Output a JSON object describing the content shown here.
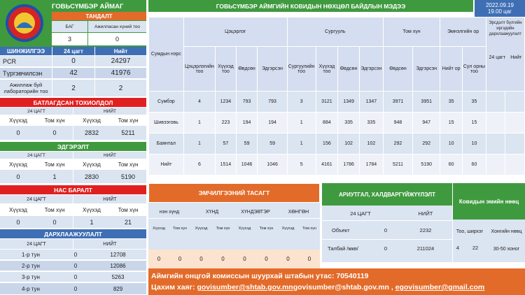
{
  "region": {
    "title": "ГОВЬСҮМБЭР АЙМАГ"
  },
  "tandalt": {
    "title": "ТАНДАЛТ",
    "col1": "БАГ",
    "col2": "Ажилласан хүний тоо",
    "val1": "3",
    "val2": "0"
  },
  "tests": {
    "title": "ШИНЖИЛГЭЭ",
    "col24": "24 цагт",
    "colTotal": "Нийт",
    "rows": [
      {
        "label": "PCR",
        "d24": "0",
        "total": "24297"
      },
      {
        "label": "Түргэвчилсэн",
        "d24": "42",
        "total": "41976"
      },
      {
        "label": "Ажиллаж буй лабораторийн тоо",
        "d24": "2",
        "total": "2"
      }
    ]
  },
  "confirmed": {
    "title": "БАТЛАГДСАН ТОХИОЛДОЛ",
    "h24": "24 ЦАГТ",
    "hTotal": "НИЙТ",
    "c1": "Хүүхэд",
    "c2": "Том хүн",
    "c3": "Хүүхэд",
    "c4": "Том хүн",
    "v1": "0",
    "v2": "0",
    "v3": "2832",
    "v4": "5211"
  },
  "recovered": {
    "title": "ЭДГЭРЭЛТ",
    "h24": "24 ЦАГТ",
    "hTotal": "НИЙТ",
    "c1": "Хүүхэд",
    "c2": "Том хүн",
    "c3": "Хүүхэд",
    "c4": "Том хүн",
    "v1": "0",
    "v2": "1",
    "v3": "2830",
    "v4": "5190"
  },
  "deaths": {
    "title": "НАС БАРАЛТ",
    "h24": "24 ЦАГТ",
    "hTotal": "НИЙТ",
    "c1": "Хүүхэд",
    "c2": "Том хүн",
    "c3": "Хүүхэд",
    "c4": "Том хүн",
    "v1": "0",
    "v2": "0",
    "v3": "1",
    "v4": "21"
  },
  "immunity": {
    "title": "ДАРХЛААЖУУЛАЛТ",
    "h24": "24 ЦАГТ",
    "hTotal": "НИЙТ",
    "rows": [
      {
        "label": "1-р тун",
        "d24": "0",
        "total": "12708"
      },
      {
        "label": "2-р тун",
        "d24": "0",
        "total": "12086"
      },
      {
        "label": "3-р тун",
        "d24": "0",
        "total": "5263"
      },
      {
        "label": "4-р тун",
        "d24": "0",
        "total": "829"
      }
    ]
  },
  "main": {
    "title": "ГОВЬСҮМБЭР АЙМГИЙН КОВИДЫН НӨХЦӨЛ БАЙДЛЫН МЭДЭЭ",
    "date": "2022.09.19",
    "time": "19.00 цаг",
    "hSoum": "Сумдын нэрс",
    "hInfected": "Цэцэрлэг",
    "hSchool": "Сургууль",
    "hAdult": "Том хүн",
    "hSick": "Эмнэлгийн  ор",
    "hVacc": "Эрсдэлт бүлгийн иргэдийн дархлаажуулалт",
    "sub": [
      "Цэцэрлэгийн тоо",
      "Хүүхэд тоо",
      "Өвдсөн",
      "Эдгэрсэн",
      "Сургуулийн тоо",
      "Хүүхэд тоо",
      "Өвдсөн",
      "Эдгэрсэн",
      "Өвдсөн",
      "Эдгэрсэн",
      "Нийт ор",
      "Сул орны тоо"
    ],
    "vaccSub1": "24 цагт",
    "vaccSub2": "Нийт",
    "rows": [
      {
        "name": "Сүмбэр",
        "v": [
          "4",
          "1234",
          "793",
          "793",
          "3",
          "3121",
          "1349",
          "1347",
          "3971",
          "3951",
          "35",
          "35"
        ]
      },
      {
        "name": "Шивээговь",
        "v": [
          "1",
          "223",
          "194",
          "194",
          "1",
          "884",
          "335",
          "335",
          "948",
          "947",
          "15",
          "15"
        ]
      },
      {
        "name": "Баянтал",
        "v": [
          "1",
          "57",
          "59",
          "59",
          "1",
          "156",
          "102",
          "102",
          "292",
          "292",
          "10",
          "10"
        ]
      },
      {
        "name": "Нийт",
        "v": [
          "6",
          "1514",
          "1046",
          "1046",
          "5",
          "4161",
          "1786",
          "1784",
          "5211",
          "5190",
          "60",
          "60"
        ]
      }
    ]
  },
  "ward": {
    "title": "ЭМЧИЛГЭЭНИЙ ТАСАГТ",
    "groups": [
      "нэн хүнд",
      "ХҮНД",
      "ХҮНДЭВТЭР",
      "ХӨНГӨН"
    ],
    "subs": [
      "Хүүхэд",
      "Том хүн",
      "Хүүхэд",
      "Том хүн",
      "Хүүхэд",
      "Том хүн",
      "Хүүхэд",
      "Том хүн"
    ],
    "vals": [
      "0",
      "0",
      "0",
      "0",
      "0",
      "0",
      "0",
      "0"
    ]
  },
  "disinfect": {
    "title": "АРИУТГАЛ, ХАЛДВАРГҮЙЖҮҮЛЭЛТ",
    "h24": "24 ЦАГТ",
    "hTotal": "НИЙТ",
    "rows": [
      {
        "label": "Объект",
        "d24": "0",
        "total": "2232"
      },
      {
        "label": "Талбай  /мкв/",
        "d24": "0",
        "total": "211024"
      }
    ]
  },
  "meds": {
    "title": "Ковидын эмийн нөөц",
    "c1": "Тоо, ширхэг",
    "c2": "Хонгийн нөөц",
    "v1": "4",
    "v2": "22",
    "v3": "30-50 хоног"
  },
  "footer": {
    "line1": "Аймгийн онцгой комиссын шуурхай штабын утас: 70540119",
    "line2prefix": "Цахим хаяг: ",
    "email1": "govisumber@shtab.gov.mn",
    "email2": "govisumber@shtab.gov.mn",
    "sepText": " , ",
    "email3": "egovisumber@gmail.com"
  },
  "colors": {
    "green": "#3f9a3f",
    "orange": "#e36b2a",
    "blue": "#3e6fb5",
    "red": "#e02020"
  }
}
